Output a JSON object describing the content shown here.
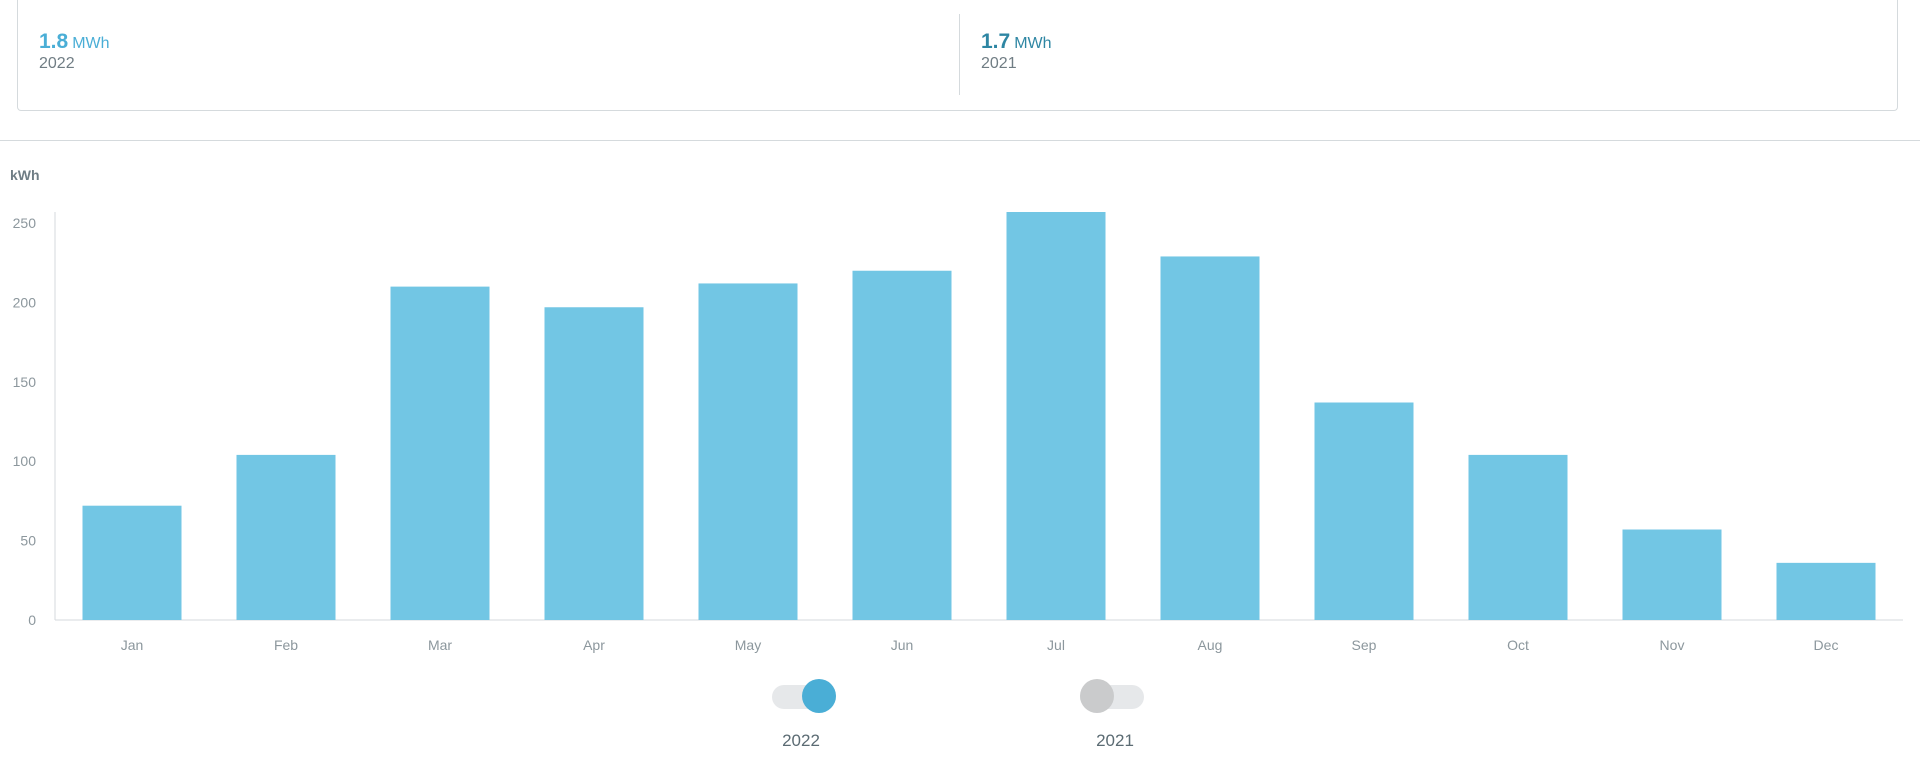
{
  "summary": {
    "current": {
      "value": "1.8",
      "unit": "MWh",
      "year": "2022"
    },
    "previous": {
      "value": "1.7",
      "unit": "MWh",
      "year": "2021"
    }
  },
  "toggles": [
    {
      "label": "2022",
      "on": true
    },
    {
      "label": "2021",
      "on": false
    }
  ],
  "colors": {
    "bar": "#72c6e4",
    "active": "#4aaed6",
    "inactive": "#cacbcc"
  },
  "chart_data": {
    "type": "bar",
    "ylabel": "kWh",
    "categories": [
      "Jan",
      "Feb",
      "Mar",
      "Apr",
      "May",
      "Jun",
      "Jul",
      "Aug",
      "Sep",
      "Oct",
      "Nov",
      "Dec"
    ],
    "series": [
      {
        "name": "2022",
        "values": [
          72,
          104,
          210,
          197,
          212,
          220,
          257,
          229,
          137,
          104,
          57,
          36
        ]
      }
    ],
    "yticks": [
      0,
      50,
      100,
      150,
      200,
      250
    ],
    "ylim": [
      0,
      257
    ],
    "grid": false
  }
}
